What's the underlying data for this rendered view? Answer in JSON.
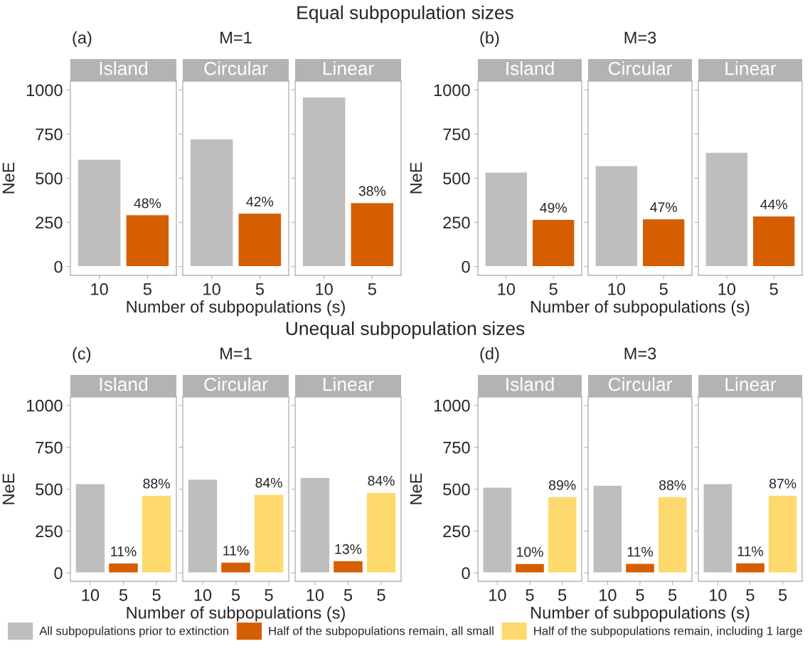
{
  "chart_data": [
    {
      "type": "other",
      "title": "Equal subpopulation sizes"
    },
    {
      "type": "bar",
      "title": "Island",
      "annotations": [
        "(a)",
        "M=1",
        {
          "text": "48%",
          "x": "5",
          "y": 293
        }
      ],
      "ylabel": "NeE",
      "categories": [
        "10",
        "5"
      ],
      "ylim": [
        -50,
        1050
      ],
      "yticks": [
        0,
        250,
        500,
        750,
        1000
      ],
      "series": [
        {
          "color": "#bebebe",
          "values": [
            608,
            null
          ]
        },
        {
          "color": "#d55e00",
          "values": [
            null,
            293
          ]
        }
      ]
    },
    {
      "type": "bar",
      "title": "Circular",
      "annotations": [
        {
          "text": "42%",
          "x": "5",
          "y": 302
        }
      ],
      "xlabel": "Number of subpopulations (s)",
      "categories": [
        "10",
        "5"
      ],
      "ylim": [
        -50,
        1050
      ],
      "yticks": [
        0,
        250,
        500,
        750,
        1000
      ],
      "tick_labels": "x",
      "series": [
        {
          "color": "#bebebe",
          "values": [
            723,
            null
          ]
        },
        {
          "color": "#d55e00",
          "values": [
            null,
            302
          ]
        }
      ]
    },
    {
      "type": "bar",
      "title": "Linear",
      "annotations": [
        {
          "text": "38%",
          "x": "5",
          "y": 362
        }
      ],
      "categories": [
        "10",
        "5"
      ],
      "ylim": [
        -50,
        1050
      ],
      "yticks": [
        0,
        250,
        500,
        750,
        1000
      ],
      "tick_labels": "x",
      "series": [
        {
          "color": "#bebebe",
          "values": [
            960,
            null
          ]
        },
        {
          "color": "#d55e00",
          "values": [
            null,
            362
          ]
        }
      ]
    },
    {
      "type": "bar",
      "title": "Island",
      "annotations": [
        "(b)",
        "M=3",
        {
          "text": "49%",
          "x": "5",
          "y": 267
        }
      ],
      "ylabel": "NeE",
      "categories": [
        "10",
        "5"
      ],
      "ylim": [
        -50,
        1050
      ],
      "yticks": [
        0,
        250,
        500,
        750,
        1000
      ],
      "series": [
        {
          "color": "#bebebe",
          "values": [
            535,
            null
          ]
        },
        {
          "color": "#d55e00",
          "values": [
            null,
            267
          ]
        }
      ]
    },
    {
      "type": "bar",
      "title": "Circular",
      "annotations": [
        {
          "text": "47%",
          "x": "5",
          "y": 270
        }
      ],
      "xlabel": "Number of subpopulations (s)",
      "categories": [
        "10",
        "5"
      ],
      "ylim": [
        -50,
        1050
      ],
      "yticks": [
        0,
        250,
        500,
        750,
        1000
      ],
      "tick_labels": "x",
      "series": [
        {
          "color": "#bebebe",
          "values": [
            571,
            null
          ]
        },
        {
          "color": "#d55e00",
          "values": [
            null,
            270
          ]
        }
      ]
    },
    {
      "type": "bar",
      "title": "Linear",
      "annotations": [
        {
          "text": "44%",
          "x": "5",
          "y": 286
        }
      ],
      "categories": [
        "10",
        "5"
      ],
      "ylim": [
        -50,
        1050
      ],
      "yticks": [
        0,
        250,
        500,
        750,
        1000
      ],
      "tick_labels": "x",
      "series": [
        {
          "color": "#bebebe",
          "values": [
            647,
            null
          ]
        },
        {
          "color": "#d55e00",
          "values": [
            null,
            286
          ]
        }
      ]
    },
    {
      "type": "other",
      "title": "Unequal subpopulation sizes"
    },
    {
      "type": "bar",
      "title": "Island",
      "annotations": [
        "(c)",
        "M=1",
        {
          "text": "11%",
          "x": "5",
          "y": 59
        },
        {
          "text": "88%",
          "y": 464
        }
      ],
      "ylabel": "NeE",
      "categories": [
        "10",
        "5",
        "5"
      ],
      "ylim": [
        -50,
        1050
      ],
      "yticks": [
        0,
        250,
        500,
        750,
        1000
      ],
      "series": [
        {
          "color": "#bebebe",
          "values": [
            533,
            null,
            null
          ]
        },
        {
          "color": "#d55e00",
          "values": [
            null,
            59,
            null
          ]
        },
        {
          "color": "#fdd96e",
          "values": [
            null,
            null,
            464
          ]
        }
      ]
    },
    {
      "type": "bar",
      "title": "Circular",
      "annotations": [
        {
          "text": "11%",
          "x": "5",
          "y": 64
        },
        {
          "text": "84%",
          "y": 469
        }
      ],
      "xlabel": "Number of subpopulations (s)",
      "categories": [
        "10",
        "5",
        "5"
      ],
      "ylim": [
        -50,
        1050
      ],
      "yticks": [
        0,
        250,
        500,
        750,
        1000
      ],
      "tick_labels": "x",
      "series": [
        {
          "color": "#bebebe",
          "values": [
            559,
            null,
            null
          ]
        },
        {
          "color": "#d55e00",
          "values": [
            null,
            64,
            null
          ]
        },
        {
          "color": "#fdd96e",
          "values": [
            null,
            null,
            469
          ]
        }
      ]
    },
    {
      "type": "bar",
      "title": "Linear",
      "annotations": [
        {
          "text": "13%",
          "x": "5",
          "y": 73
        },
        {
          "text": "84%",
          "y": 481
        }
      ],
      "categories": [
        "10",
        "5",
        "5"
      ],
      "ylim": [
        -50,
        1050
      ],
      "yticks": [
        0,
        250,
        500,
        750,
        1000
      ],
      "tick_labels": "x",
      "series": [
        {
          "color": "#bebebe",
          "values": [
            570,
            null,
            null
          ]
        },
        {
          "color": "#d55e00",
          "values": [
            null,
            73,
            null
          ]
        },
        {
          "color": "#fdd96e",
          "values": [
            null,
            null,
            481
          ]
        }
      ]
    },
    {
      "type": "bar",
      "title": "Island",
      "annotations": [
        "(d)",
        "M=3",
        {
          "text": "10%",
          "x": "5",
          "y": 56
        },
        {
          "text": "89%",
          "y": 455
        }
      ],
      "ylabel": "NeE",
      "categories": [
        "10",
        "5",
        "5"
      ],
      "ylim": [
        -50,
        1050
      ],
      "yticks": [
        0,
        250,
        500,
        750,
        1000
      ],
      "series": [
        {
          "color": "#bebebe",
          "values": [
            511,
            null,
            null
          ]
        },
        {
          "color": "#d55e00",
          "values": [
            null,
            56,
            null
          ]
        },
        {
          "color": "#fdd96e",
          "values": [
            null,
            null,
            455
          ]
        }
      ]
    },
    {
      "type": "bar",
      "title": "Circular",
      "annotations": [
        {
          "text": "11%",
          "x": "5",
          "y": 57
        },
        {
          "text": "88%",
          "y": 455
        }
      ],
      "xlabel": "Number of subpopulations (s)",
      "categories": [
        "10",
        "5",
        "5"
      ],
      "ylim": [
        -50,
        1050
      ],
      "yticks": [
        0,
        250,
        500,
        750,
        1000
      ],
      "tick_labels": "x",
      "series": [
        {
          "color": "#bebebe",
          "values": [
            523,
            null,
            null
          ]
        },
        {
          "color": "#d55e00",
          "values": [
            null,
            57,
            null
          ]
        },
        {
          "color": "#fdd96e",
          "values": [
            null,
            null,
            455
          ]
        }
      ]
    },
    {
      "type": "bar",
      "title": "Linear",
      "annotations": [
        {
          "text": "11%",
          "x": "5",
          "y": 60
        },
        {
          "text": "87%",
          "y": 464
        }
      ],
      "categories": [
        "10",
        "5",
        "5"
      ],
      "ylim": [
        -50,
        1050
      ],
      "yticks": [
        0,
        250,
        500,
        750,
        1000
      ],
      "tick_labels": "x",
      "legend": "bottom",
      "series": [
        {
          "name": "All subpopulations prior to extinction",
          "color": "#bebebe",
          "values": [
            533,
            null,
            null
          ]
        },
        {
          "name": "Half of the subpopulations remain, all small",
          "color": "#d55e00",
          "values": [
            null,
            60,
            null
          ]
        },
        {
          "name": "Half of the subpopulations remain, including 1 large",
          "color": "#fdd96e",
          "values": [
            null,
            null,
            464
          ]
        }
      ]
    }
  ]
}
